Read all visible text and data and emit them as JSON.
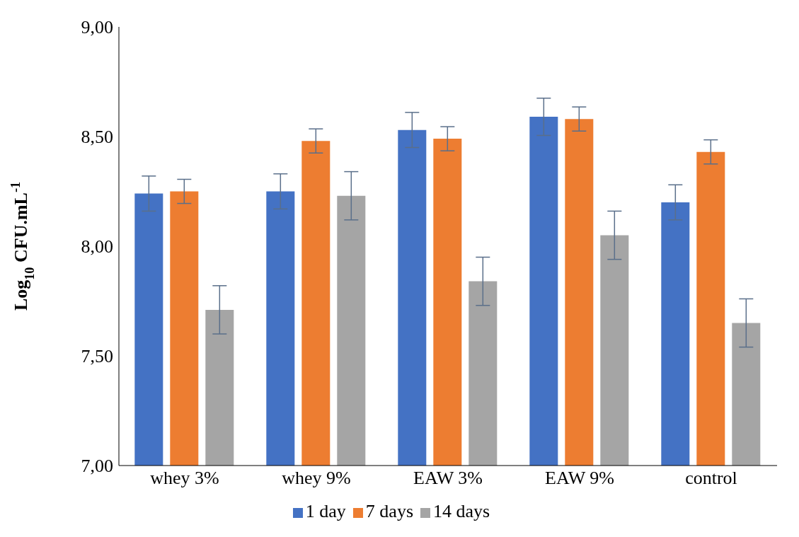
{
  "chart_data": {
    "type": "bar",
    "ylabel": "Log$_{10}$ CFU.mL$^{-1}$",
    "categories": [
      "whey 3%",
      "whey 9%",
      "EAW 3%",
      "EAW 9%",
      "control"
    ],
    "series": [
      {
        "name": "1 day",
        "color": "#4472c4",
        "values": [
          8.24,
          8.25,
          8.53,
          8.59,
          8.2
        ],
        "errors": [
          0.08,
          0.08,
          0.08,
          0.085,
          0.08
        ]
      },
      {
        "name": "7 days",
        "color": "#ed7d31",
        "values": [
          8.25,
          8.48,
          8.49,
          8.58,
          8.43
        ],
        "errors": [
          0.055,
          0.055,
          0.055,
          0.055,
          0.055
        ]
      },
      {
        "name": "14 days",
        "color": "#a5a5a5",
        "values": [
          7.71,
          8.23,
          7.84,
          8.05,
          7.65
        ],
        "errors": [
          0.11,
          0.11,
          0.11,
          0.11,
          0.11
        ]
      }
    ],
    "ylim": [
      7,
      9
    ],
    "yticks": [
      {
        "value": 7,
        "label": "7,00"
      },
      {
        "value": 7.5,
        "label": "7,50"
      },
      {
        "value": 8,
        "label": "8,00"
      },
      {
        "value": 8.5,
        "label": "8,50"
      },
      {
        "value": 9,
        "label": "9,00"
      }
    ],
    "grid": false,
    "legend": "bottom"
  }
}
